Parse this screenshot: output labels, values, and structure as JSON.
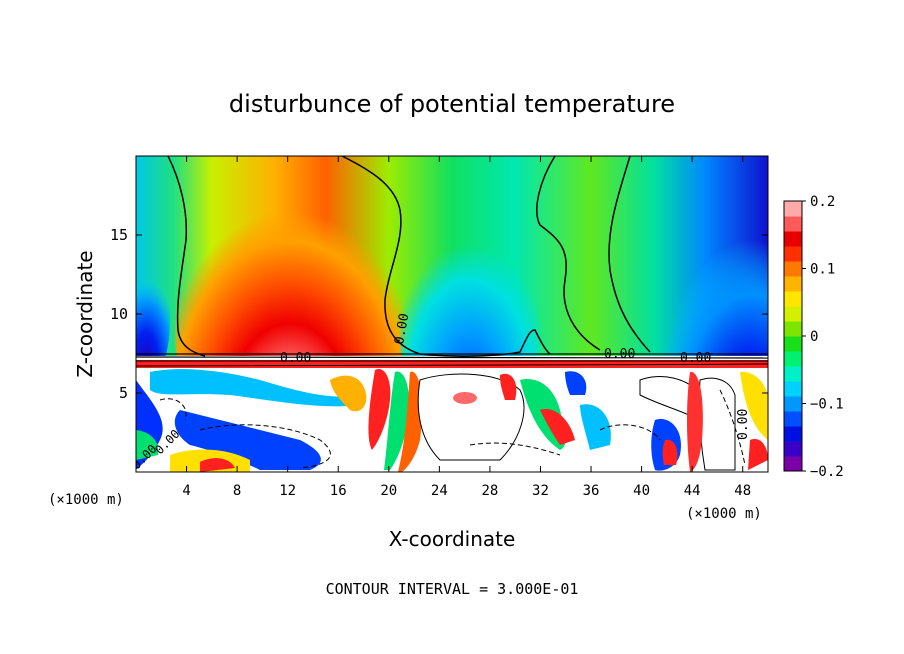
{
  "chart_data": {
    "type": "heatmap",
    "title": "disturbunce of potential temperature",
    "xlabel": "X-coordinate",
    "ylabel": "Z-coordinate",
    "x_unit_left": "(×1000 m)",
    "x_unit_right": "(×1000 m)",
    "footer": "CONTOUR INTERVAL = 3.000E-01",
    "xlim": [
      0,
      50
    ],
    "ylim": [
      0,
      20
    ],
    "xticks": [
      "4",
      "8",
      "12",
      "16",
      "20",
      "24",
      "28",
      "32",
      "36",
      "40",
      "44",
      "48"
    ],
    "yticks": [
      "5",
      "10",
      "15"
    ],
    "colorbar": {
      "min": -0.2,
      "max": 0.2,
      "tick_labels": [
        "0.2",
        "0.1",
        "0",
        "−0.1",
        "−0.2"
      ],
      "colors": [
        "#7a00a8",
        "#3a00c8",
        "#0010e0",
        "#0050ff",
        "#0098ff",
        "#00d2ff",
        "#00f0c8",
        "#00f070",
        "#18e018",
        "#7ce600",
        "#d4f000",
        "#ffe600",
        "#ffb400",
        "#ff7800",
        "#ff3000",
        "#e80000",
        "#ff5a5a",
        "#ffaaaa"
      ]
    },
    "contour_labels": [
      "0.00",
      "0.00",
      "0.00",
      "0.00",
      "0.00",
      "0.00",
      "0.00"
    ],
    "grid": false
  }
}
